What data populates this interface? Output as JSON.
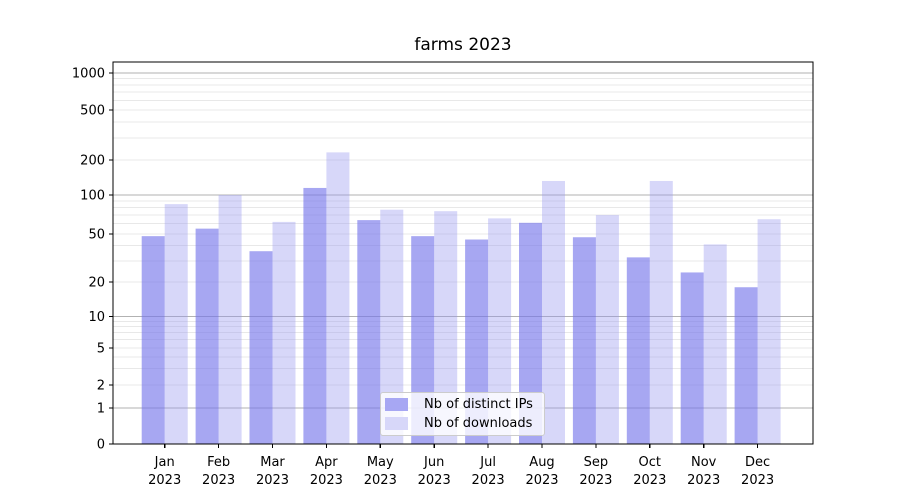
{
  "chart_data": {
    "type": "bar",
    "title": "farms 2023",
    "categories": [
      "Jan",
      "Feb",
      "Mar",
      "Apr",
      "May",
      "Jun",
      "Jul",
      "Aug",
      "Sep",
      "Oct",
      "Nov",
      "Dec"
    ],
    "year_label": "2023",
    "series": [
      {
        "name": "Nb of distinct IPs",
        "fill": "rgba(115,115,235,0.63)",
        "swatch": "#a7a7f3",
        "values": [
          48,
          55,
          36,
          115,
          64,
          48,
          45,
          61,
          47,
          32,
          24,
          18
        ]
      },
      {
        "name": "Nb of downloads",
        "fill": "rgba(150,150,240,0.38)",
        "swatch": "#d7d7f9",
        "values": [
          85,
          100,
          62,
          230,
          77,
          75,
          66,
          132,
          70,
          132,
          41,
          65
        ]
      }
    ],
    "yscale": "symlog",
    "yticks": [
      0,
      1,
      2,
      5,
      10,
      20,
      50,
      100,
      200,
      500,
      1000
    ],
    "ylim": [
      0,
      1400
    ],
    "grid": true,
    "legend_position": "lower center",
    "colors": {
      "major_grid": "#b2b2b2",
      "minor_grid": "#e8e8e8",
      "axis": "#000000",
      "background": "#ffffff",
      "tick_text": "#000000"
    }
  }
}
